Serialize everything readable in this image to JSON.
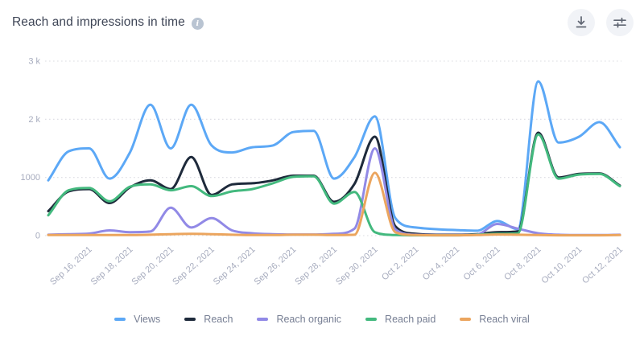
{
  "header": {
    "title": "Reach and impressions in time",
    "info_glyph": "i",
    "buttons": [
      {
        "name": "download",
        "icon": "download-icon"
      },
      {
        "name": "chart-settings",
        "icon": "sliders-icon"
      }
    ]
  },
  "colors": {
    "background": "#ffffff",
    "title_text": "#3e4556",
    "axis_text": "#a7acbe",
    "gridline": "#dbdce2",
    "legend_text": "#767e93",
    "button_bg": "#f1f3f7",
    "button_icon": "#5f6572",
    "info_icon_bg": "#b9c4d2"
  },
  "chart_data": {
    "type": "line",
    "title": "Reach and impressions in time",
    "xlabel": "",
    "ylabel": "",
    "ylim": [
      0,
      3000
    ],
    "grid": "dotted-horizontal",
    "legend_position": "bottom-center",
    "y_ticks": [
      {
        "value": 0,
        "label": "0"
      },
      {
        "value": 1000,
        "label": "1000"
      },
      {
        "value": 2000,
        "label": "2 k"
      },
      {
        "value": 3000,
        "label": "3 k"
      }
    ],
    "x": [
      "Sep 14, 2021",
      "Sep 15, 2021",
      "Sep 16, 2021",
      "Sep 17, 2021",
      "Sep 18, 2021",
      "Sep 19, 2021",
      "Sep 20, 2021",
      "Sep 21, 2021",
      "Sep 22, 2021",
      "Sep 23, 2021",
      "Sep 24, 2021",
      "Sep 25, 2021",
      "Sep 26, 2021",
      "Sep 27, 2021",
      "Sep 28, 2021",
      "Sep 29, 2021",
      "Sep 30, 2021",
      "Oct 1, 2021",
      "Oct 2, 2021",
      "Oct 3, 2021",
      "Oct 4, 2021",
      "Oct 5, 2021",
      "Oct 6, 2021",
      "Oct 7, 2021",
      "Oct 8, 2021",
      "Oct 9, 2021",
      "Oct 10, 2021",
      "Oct 11, 2021",
      "Oct 12, 2021"
    ],
    "x_tick_labels": [
      "Sep 16, 2021",
      "Sep 18, 2021",
      "Sep 20, 2021",
      "Sep 22, 2021",
      "Sep 24, 2021",
      "Sep 26, 2021",
      "Sep 28, 2021",
      "Sep 30, 2021",
      "Oct 2, 2021",
      "Oct 4, 2021",
      "Oct 6, 2021",
      "Oct 8, 2021",
      "Oct 10, 2021",
      "Oct 12, 2021"
    ],
    "series": [
      {
        "name": "Views",
        "color": "#5ca8f6",
        "values": [
          950,
          1450,
          1500,
          980,
          1430,
          2250,
          1500,
          2250,
          1550,
          1430,
          1520,
          1550,
          1780,
          1800,
          980,
          1350,
          2050,
          300,
          140,
          110,
          95,
          85,
          250,
          110,
          2650,
          1600,
          1700,
          1950,
          1520
        ]
      },
      {
        "name": "Reach",
        "color": "#1e2a3b",
        "values": [
          420,
          760,
          800,
          560,
          830,
          950,
          800,
          1350,
          700,
          880,
          900,
          950,
          1030,
          1030,
          580,
          890,
          1700,
          160,
          30,
          15,
          15,
          25,
          60,
          70,
          1770,
          1000,
          1060,
          1070,
          860
        ]
      },
      {
        "name": "Reach organic",
        "color": "#9189e6",
        "values": [
          15,
          25,
          35,
          90,
          60,
          70,
          480,
          140,
          300,
          90,
          40,
          25,
          20,
          20,
          30,
          120,
          1500,
          110,
          15,
          10,
          10,
          20,
          200,
          120,
          40,
          15,
          10,
          10,
          15
        ]
      },
      {
        "name": "Reach paid",
        "color": "#43b97e",
        "values": [
          350,
          780,
          820,
          590,
          840,
          880,
          780,
          850,
          680,
          760,
          800,
          900,
          1010,
          1020,
          550,
          750,
          60,
          10,
          5,
          5,
          5,
          15,
          30,
          40,
          1740,
          980,
          1050,
          1060,
          850
        ]
      },
      {
        "name": "Reach viral",
        "color": "#eba55e",
        "values": [
          10,
          10,
          10,
          10,
          10,
          15,
          25,
          30,
          25,
          15,
          10,
          10,
          15,
          15,
          10,
          15,
          1080,
          60,
          10,
          5,
          5,
          10,
          20,
          15,
          10,
          5,
          5,
          5,
          10
        ]
      }
    ]
  }
}
